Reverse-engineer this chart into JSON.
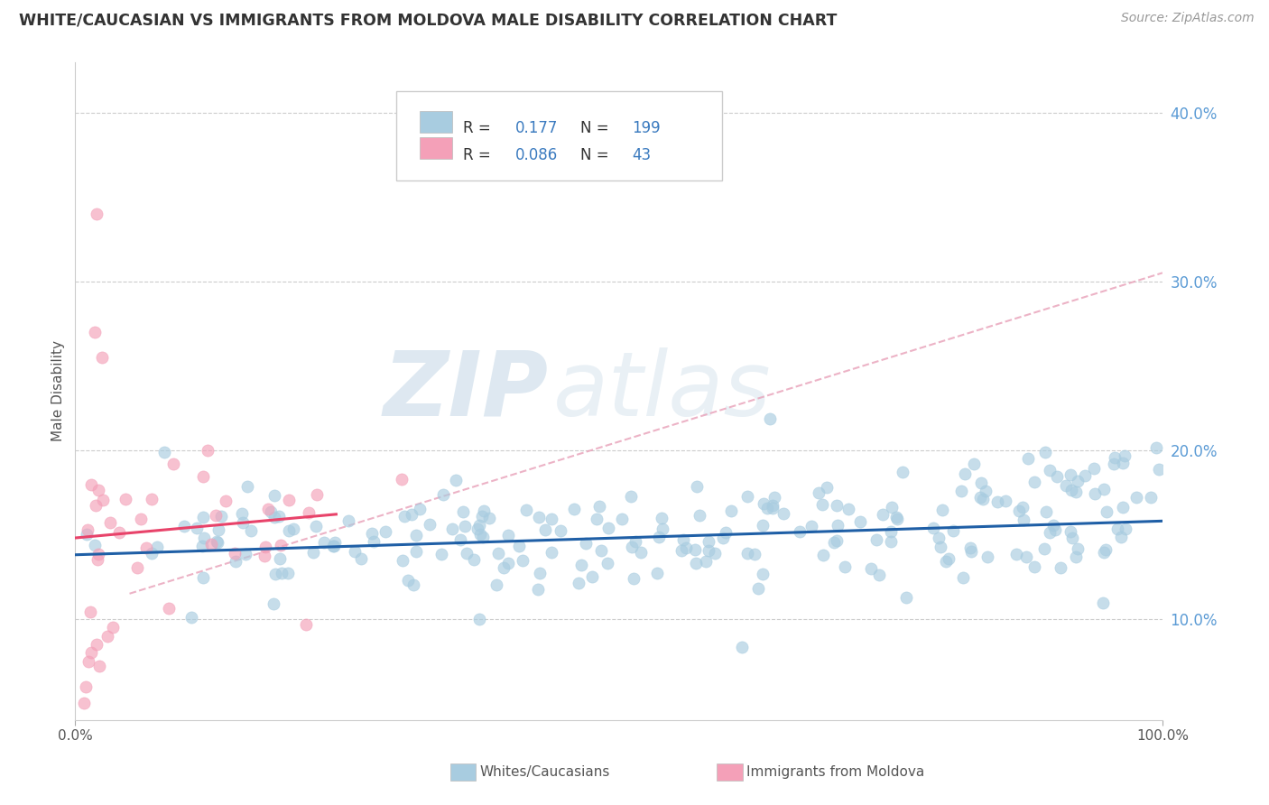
{
  "title": "WHITE/CAUCASIAN VS IMMIGRANTS FROM MOLDOVA MALE DISABILITY CORRELATION CHART",
  "source": "Source: ZipAtlas.com",
  "ylabel": "Male Disability",
  "watermark_zip": "ZIP",
  "watermark_atlas": "atlas",
  "blue_R": 0.177,
  "blue_N": 199,
  "pink_R": 0.086,
  "pink_N": 43,
  "blue_color": "#a8cce0",
  "pink_color": "#f4a0b8",
  "blue_line_color": "#1f5fa6",
  "pink_line_color": "#e8436a",
  "dashed_line_color": "#e8a0b8",
  "grid_color": "#cccccc",
  "background_color": "#ffffff",
  "title_color": "#333333",
  "legend_label_blue": "Whites/Caucasians",
  "legend_label_pink": "Immigrants from Moldova",
  "xlim": [
    0.0,
    1.0
  ],
  "ylim": [
    0.04,
    0.43
  ],
  "ytick_labels": [
    "10.0%",
    "20.0%",
    "30.0%",
    "40.0%"
  ],
  "ytick_values": [
    0.1,
    0.2,
    0.3,
    0.4
  ],
  "blue_line_x": [
    0.0,
    1.0
  ],
  "blue_line_y": [
    0.138,
    0.158
  ],
  "pink_line_x": [
    0.0,
    0.24
  ],
  "pink_line_y": [
    0.148,
    0.162
  ],
  "dashed_line_x": [
    0.05,
    1.0
  ],
  "dashed_line_y": [
    0.115,
    0.305
  ]
}
